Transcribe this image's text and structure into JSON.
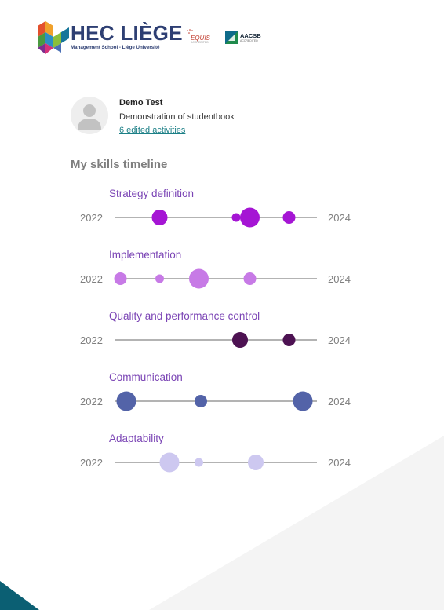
{
  "header": {
    "logo_title": "HEC LIÈGE",
    "logo_subtitle": "Management School - Liège Université",
    "equis_label": "EQUIS",
    "equis_sub": "ACCREDITED",
    "aacsb_label": "AACSB",
    "aacsb_sub": "ACCREDITED"
  },
  "profile": {
    "name": "Demo Test",
    "description": "Demonstration of studentbook",
    "activities_link": "6 edited activities"
  },
  "section_title": "My skills timeline",
  "skills": [
    {
      "label": "Strategy definition",
      "start_year": "2022",
      "end_year": "2024",
      "color": "#a515d4",
      "points": [
        {
          "t": 0.23,
          "size": "large"
        },
        {
          "t": 0.62,
          "size": "small"
        },
        {
          "t": 0.69,
          "size": "xlarge"
        },
        {
          "t": 0.89,
          "size": "medium"
        }
      ]
    },
    {
      "label": "Implementation",
      "start_year": "2022",
      "end_year": "2024",
      "color": "#c77ae6",
      "points": [
        {
          "t": 0.03,
          "size": "medium"
        },
        {
          "t": 0.23,
          "size": "small"
        },
        {
          "t": 0.43,
          "size": "xlarge"
        },
        {
          "t": 0.69,
          "size": "medium"
        }
      ]
    },
    {
      "label": "Quality and performance control",
      "start_year": "2022",
      "end_year": "2024",
      "color": "#4d1252",
      "points": [
        {
          "t": 0.64,
          "size": "large"
        },
        {
          "t": 0.89,
          "size": "medium"
        }
      ]
    },
    {
      "label": "Communication",
      "start_year": "2022",
      "end_year": "2024",
      "color": "#5363a8",
      "points": [
        {
          "t": 0.06,
          "size": "xlarge"
        },
        {
          "t": 0.44,
          "size": "medium"
        },
        {
          "t": 0.96,
          "size": "xlarge"
        }
      ]
    },
    {
      "label": "Adaptability",
      "start_year": "2022",
      "end_year": "2024",
      "color": "#cdc8f0",
      "points": [
        {
          "t": 0.28,
          "size": "xlarge"
        },
        {
          "t": 0.43,
          "size": "small"
        },
        {
          "t": 0.72,
          "size": "large"
        }
      ]
    }
  ]
}
